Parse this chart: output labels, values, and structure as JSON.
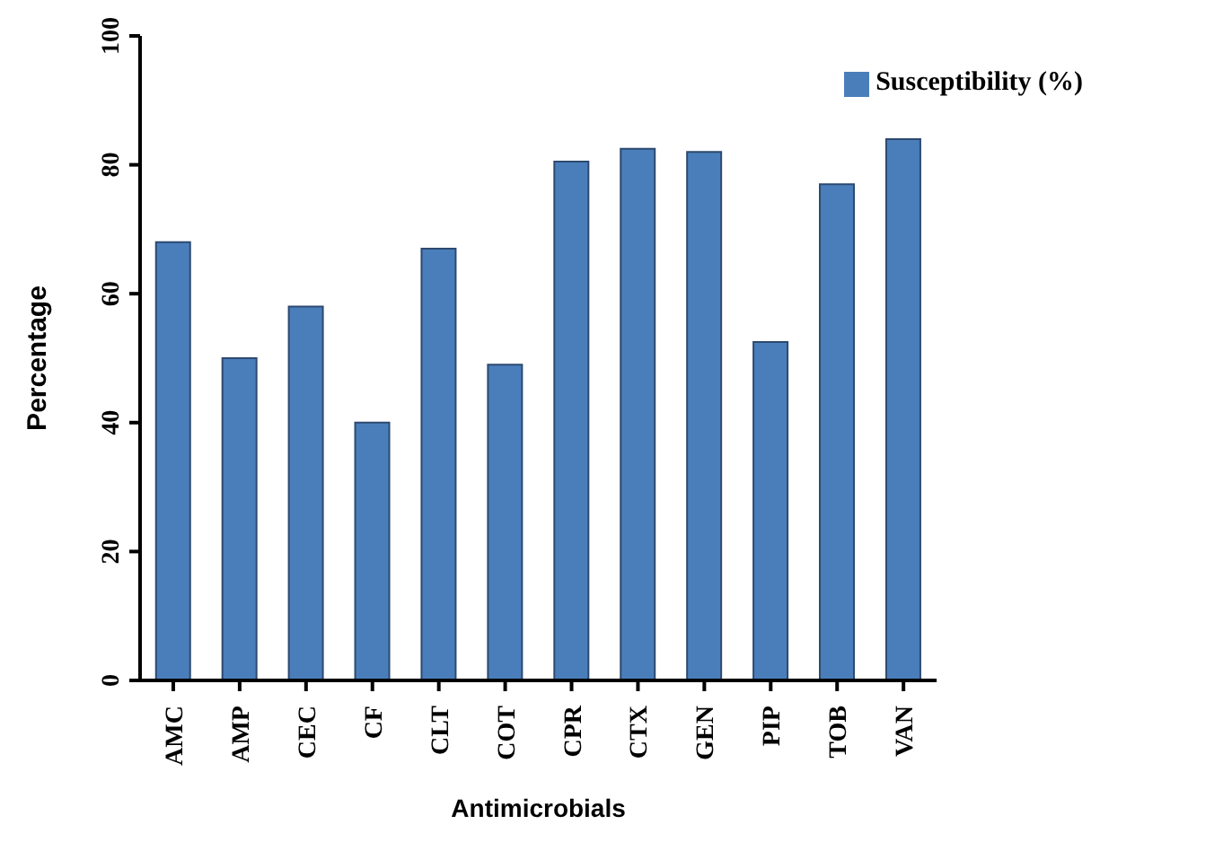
{
  "chart_data": {
    "type": "bar",
    "xlabel": "Antimicrobials",
    "ylabel": "Percentage",
    "categories": [
      "AMC",
      "AMP",
      "CEC",
      "CF",
      "CLT",
      "COT",
      "CPR",
      "CTX",
      "GEN",
      "PIP",
      "TOB",
      "VAN"
    ],
    "series": [
      {
        "name": "Susceptibility (%)",
        "color": "#4a7ebb",
        "values": [
          68,
          50,
          58,
          40,
          67,
          49,
          80.5,
          82.5,
          82,
          52.5,
          77,
          84
        ]
      }
    ],
    "ylim": [
      0,
      100
    ],
    "yticks": [
      0,
      20,
      40,
      60,
      80,
      100
    ],
    "grid": false,
    "legend": "top right"
  }
}
